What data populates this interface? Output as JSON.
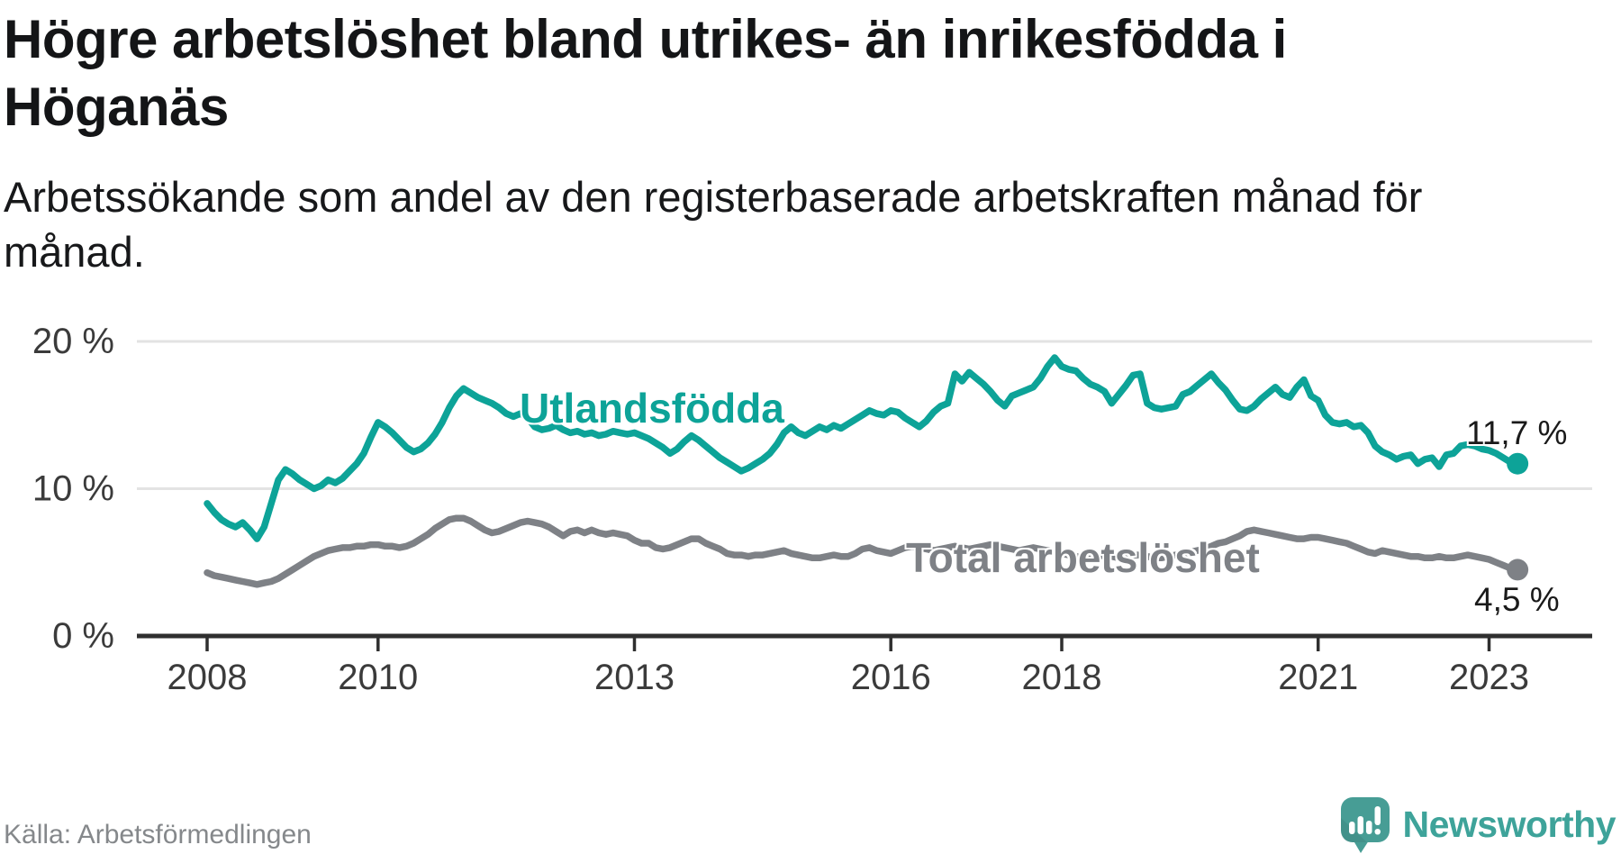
{
  "title": "Högre arbetslöshet bland utrikes- än inrikesfödda i Höganäs",
  "title_lines": [
    "Högre arbetslöshet bland utrikes- än inrikesfödda i",
    "Höganäs"
  ],
  "subtitle": "Arbetssökande som andel av den registerbaserade arbetskraften månad för månad.",
  "subtitle_lines": [
    "Arbetssökande som andel av den registerbaserade arbetskraften månad för",
    "månad."
  ],
  "source": "Källa: Arbetsförmedlingen",
  "brand": {
    "name": "Newsworthy",
    "icon": "newsworthy-speech-bubble-bar-chart-icon",
    "icon_color": "#479d95",
    "text_color": "#3ea39a"
  },
  "chart_data": {
    "type": "line",
    "title": "Högre arbetslöshet bland utrikes- än inrikesfödda i Höganäs",
    "subtitle": "Arbetssökande som andel av den registerbaserade arbetskraften månad för månad.",
    "source": "Källa: Arbetsförmedlingen",
    "unit": "%",
    "x_unit": "month",
    "x_start": "2008-01",
    "x_end": "2023-05",
    "grid": "horizontal",
    "legend_position": "inline-labels",
    "ylim": [
      0,
      21
    ],
    "y_ticks": [
      {
        "value": 0,
        "label": "0 %"
      },
      {
        "value": 10,
        "label": "10 %"
      },
      {
        "value": 20,
        "label": "20 %"
      }
    ],
    "x_ticks": [
      {
        "year": 2008,
        "label": "2008"
      },
      {
        "year": 2010,
        "label": "2010"
      },
      {
        "year": 2013,
        "label": "2013"
      },
      {
        "year": 2016,
        "label": "2016"
      },
      {
        "year": 2018,
        "label": "2018"
      },
      {
        "year": 2021,
        "label": "2021"
      },
      {
        "year": 2023,
        "label": "2023"
      }
    ],
    "series": [
      {
        "name": "Utlandsfödda",
        "color": "#0da398",
        "end_value": 11.7,
        "end_label": "11,7 %",
        "values": [
          9.0,
          8.4,
          7.9,
          7.6,
          7.4,
          7.7,
          7.2,
          6.6,
          7.4,
          9.0,
          10.6,
          11.3,
          11.0,
          10.6,
          10.3,
          10.0,
          10.2,
          10.6,
          10.4,
          10.7,
          11.2,
          11.7,
          12.4,
          13.5,
          14.5,
          14.2,
          13.8,
          13.3,
          12.8,
          12.5,
          12.7,
          13.1,
          13.7,
          14.5,
          15.5,
          16.3,
          16.8,
          16.5,
          16.2,
          16.0,
          15.8,
          15.5,
          15.1,
          14.9,
          15.1,
          14.8,
          14.2,
          14.0,
          14.1,
          14.3,
          14.0,
          13.8,
          13.9,
          13.7,
          13.8,
          13.6,
          13.7,
          13.9,
          13.8,
          13.7,
          13.8,
          13.6,
          13.4,
          13.1,
          12.8,
          12.4,
          12.7,
          13.2,
          13.6,
          13.3,
          12.9,
          12.5,
          12.1,
          11.8,
          11.5,
          11.2,
          11.4,
          11.7,
          12.0,
          12.4,
          13.0,
          13.8,
          14.2,
          13.8,
          13.6,
          13.9,
          14.2,
          14.0,
          14.3,
          14.1,
          14.4,
          14.7,
          15.0,
          15.3,
          15.1,
          15.0,
          15.3,
          15.2,
          14.8,
          14.5,
          14.2,
          14.6,
          15.2,
          15.6,
          15.8,
          17.8,
          17.3,
          17.9,
          17.5,
          17.1,
          16.6,
          16.0,
          15.6,
          16.3,
          16.5,
          16.7,
          16.9,
          17.5,
          18.3,
          18.9,
          18.3,
          18.1,
          18.0,
          17.5,
          17.1,
          16.9,
          16.6,
          15.8,
          16.4,
          17.0,
          17.7,
          17.8,
          15.8,
          15.5,
          15.4,
          15.5,
          15.6,
          16.4,
          16.6,
          17.0,
          17.4,
          17.8,
          17.2,
          16.7,
          16.0,
          15.4,
          15.3,
          15.6,
          16.1,
          16.5,
          16.9,
          16.4,
          16.2,
          16.9,
          17.4,
          16.3,
          16.0,
          15.0,
          14.5,
          14.4,
          14.5,
          14.2,
          14.3,
          13.8,
          12.9,
          12.5,
          12.3,
          12.0,
          12.2,
          12.3,
          11.7,
          12.0,
          12.1,
          11.5,
          12.3,
          12.4,
          12.9,
          13.0,
          12.9,
          12.7,
          12.6,
          12.4,
          12.1,
          11.8,
          11.7
        ]
      },
      {
        "name": "Total arbetslöshet",
        "color": "#7e8186",
        "end_value": 4.5,
        "end_label": "4,5 %",
        "values": [
          4.3,
          4.1,
          4.0,
          3.9,
          3.8,
          3.7,
          3.6,
          3.5,
          3.6,
          3.7,
          3.9,
          4.2,
          4.5,
          4.8,
          5.1,
          5.4,
          5.6,
          5.8,
          5.9,
          6.0,
          6.0,
          6.1,
          6.1,
          6.2,
          6.2,
          6.1,
          6.1,
          6.0,
          6.1,
          6.3,
          6.6,
          6.9,
          7.3,
          7.6,
          7.9,
          8.0,
          8.0,
          7.8,
          7.5,
          7.2,
          7.0,
          7.1,
          7.3,
          7.5,
          7.7,
          7.8,
          7.7,
          7.6,
          7.4,
          7.1,
          6.8,
          7.1,
          7.2,
          7.0,
          7.2,
          7.0,
          6.9,
          7.0,
          6.9,
          6.8,
          6.5,
          6.3,
          6.3,
          6.0,
          5.9,
          6.0,
          6.2,
          6.4,
          6.6,
          6.6,
          6.3,
          6.1,
          5.9,
          5.6,
          5.5,
          5.5,
          5.4,
          5.5,
          5.5,
          5.6,
          5.7,
          5.8,
          5.6,
          5.5,
          5.4,
          5.3,
          5.3,
          5.4,
          5.5,
          5.4,
          5.4,
          5.6,
          5.9,
          6.0,
          5.8,
          5.7,
          5.6,
          5.8,
          6.0,
          6.1,
          6.0,
          5.9,
          5.8,
          5.9,
          6.0,
          6.1,
          6.0,
          5.9,
          6.0,
          6.1,
          6.2,
          6.1,
          6.0,
          5.9,
          5.8,
          5.9,
          6.0,
          5.9,
          5.8,
          5.7,
          5.6,
          5.5,
          5.4,
          5.3,
          5.3,
          5.4,
          5.5,
          5.4,
          5.3,
          5.4,
          5.5,
          5.5,
          5.4,
          5.3,
          5.3,
          5.4,
          5.5,
          5.6,
          5.7,
          5.8,
          5.9,
          6.1,
          6.3,
          6.4,
          6.6,
          6.8,
          7.1,
          7.2,
          7.1,
          7.0,
          6.9,
          6.8,
          6.7,
          6.6,
          6.6,
          6.7,
          6.7,
          6.6,
          6.5,
          6.4,
          6.3,
          6.1,
          5.9,
          5.7,
          5.6,
          5.8,
          5.7,
          5.6,
          5.5,
          5.4,
          5.4,
          5.3,
          5.3,
          5.4,
          5.3,
          5.3,
          5.4,
          5.5,
          5.4,
          5.3,
          5.2,
          5.0,
          4.8,
          4.6,
          4.5
        ]
      }
    ]
  }
}
